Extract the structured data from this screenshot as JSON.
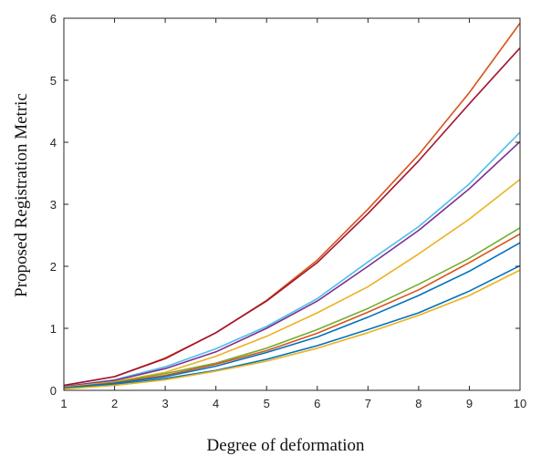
{
  "chart_data": {
    "type": "line",
    "title": "",
    "xlabel": "Degree of deformation",
    "ylabel": "Proposed Registration Metric",
    "xlim": [
      1,
      10
    ],
    "ylim": [
      0,
      6
    ],
    "xticks": [
      1,
      2,
      3,
      4,
      5,
      6,
      7,
      8,
      9,
      10
    ],
    "yticks": [
      0,
      1,
      2,
      3,
      4,
      5,
      6
    ],
    "grid": false,
    "legend": "none",
    "x": [
      1,
      2,
      3,
      4,
      5,
      6,
      7,
      8,
      9,
      10
    ],
    "series": [
      {
        "color": "#D95319",
        "values": [
          0.08,
          0.22,
          0.52,
          0.93,
          1.45,
          2.1,
          2.92,
          3.8,
          4.8,
          5.92
        ]
      },
      {
        "color": "#A2142F",
        "values": [
          0.08,
          0.22,
          0.51,
          0.93,
          1.44,
          2.06,
          2.85,
          3.7,
          4.62,
          5.52
        ]
      },
      {
        "color": "#4DBEEE",
        "values": [
          0.06,
          0.17,
          0.38,
          0.67,
          1.03,
          1.48,
          2.07,
          2.64,
          3.33,
          4.16
        ]
      },
      {
        "color": "#7E2F8E",
        "values": [
          0.06,
          0.16,
          0.35,
          0.62,
          1.0,
          1.44,
          2.0,
          2.58,
          3.25,
          4.01
        ]
      },
      {
        "color": "#EDB120",
        "values": [
          0.05,
          0.14,
          0.29,
          0.55,
          0.87,
          1.25,
          1.67,
          2.2,
          2.76,
          3.4
        ]
      },
      {
        "color": "#77AC30",
        "values": [
          0.04,
          0.13,
          0.27,
          0.44,
          0.68,
          0.98,
          1.32,
          1.71,
          2.13,
          2.62
        ]
      },
      {
        "color": "#D95319",
        "values": [
          0.04,
          0.12,
          0.24,
          0.42,
          0.64,
          0.92,
          1.26,
          1.62,
          2.06,
          2.52
        ]
      },
      {
        "color": "#0072BD",
        "values": [
          0.04,
          0.11,
          0.22,
          0.39,
          0.61,
          0.86,
          1.18,
          1.53,
          1.92,
          2.38
        ]
      },
      {
        "color": "#0072BD",
        "values": [
          0.03,
          0.09,
          0.19,
          0.32,
          0.5,
          0.72,
          0.98,
          1.25,
          1.6,
          2.01
        ]
      },
      {
        "color": "#EDB120",
        "values": [
          0.02,
          0.08,
          0.17,
          0.31,
          0.47,
          0.68,
          0.93,
          1.21,
          1.53,
          1.94
        ]
      }
    ]
  }
}
